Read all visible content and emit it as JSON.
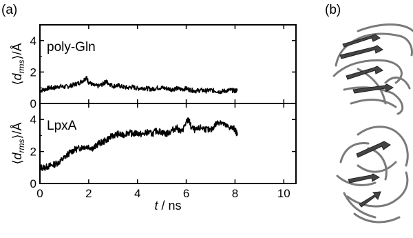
{
  "panel_labels": {
    "a": "(a)",
    "b": "(b)"
  },
  "chart_data": [
    {
      "type": "line",
      "panel": "(a) top",
      "inset_label": "poly-Gln",
      "ylabel": "⟨d_rms⟩/Å",
      "xlim": [
        0,
        10.5
      ],
      "ylim": [
        0,
        5
      ],
      "yticks": [
        0,
        2,
        4
      ],
      "xticks": [
        0,
        2,
        4,
        6,
        8,
        10
      ],
      "series": [
        {
          "x": [
            0,
            0.2,
            0.4,
            0.6,
            0.8,
            1.0,
            1.2,
            1.4,
            1.6,
            1.8,
            1.9,
            2.0,
            2.2,
            2.4,
            2.6,
            2.7,
            2.8,
            3.0,
            3.2,
            3.4,
            3.6,
            3.8,
            4.0,
            4.2,
            4.4,
            4.6,
            4.8,
            5.0,
            5.2,
            5.4,
            5.6,
            5.8,
            6.0,
            6.2,
            6.4,
            6.6,
            6.8,
            7.0,
            7.2,
            7.4,
            7.6,
            7.8,
            8.0,
            8.1
          ],
          "y": [
            0.8,
            0.9,
            1.0,
            1.0,
            1.1,
            1.05,
            1.1,
            1.2,
            1.3,
            1.5,
            1.65,
            1.35,
            1.15,
            1.1,
            1.25,
            1.4,
            1.3,
            1.1,
            1.15,
            1.05,
            1.0,
            1.05,
            0.95,
            1.0,
            0.95,
            0.9,
            1.0,
            1.0,
            0.95,
            0.9,
            0.95,
            0.9,
            0.95,
            0.85,
            0.8,
            0.85,
            0.8,
            0.85,
            0.8,
            0.75,
            0.8,
            0.85,
            0.8,
            0.85
          ]
        }
      ]
    },
    {
      "type": "line",
      "panel": "(a) bottom",
      "inset_label": "LpxA",
      "ylabel": "⟨d_rms⟩/Å",
      "xlabel": "t / ns",
      "xlim": [
        0,
        10.5
      ],
      "ylim": [
        0,
        5
      ],
      "yticks": [
        0,
        2,
        4
      ],
      "xticks": [
        0,
        2,
        4,
        6,
        8,
        10
      ],
      "series": [
        {
          "x": [
            0,
            0.2,
            0.4,
            0.6,
            0.8,
            1.0,
            1.2,
            1.4,
            1.6,
            1.8,
            2.0,
            2.2,
            2.4,
            2.6,
            2.8,
            3.0,
            3.2,
            3.4,
            3.6,
            3.8,
            4.0,
            4.2,
            4.4,
            4.6,
            4.8,
            5.0,
            5.2,
            5.4,
            5.6,
            5.8,
            6.0,
            6.1,
            6.2,
            6.4,
            6.6,
            6.8,
            7.0,
            7.2,
            7.4,
            7.6,
            7.8,
            8.0,
            8.1
          ],
          "y": [
            1.0,
            1.0,
            1.1,
            1.2,
            1.35,
            1.6,
            1.9,
            2.1,
            2.2,
            2.3,
            2.3,
            2.2,
            2.5,
            2.6,
            2.8,
            3.0,
            3.1,
            3.0,
            3.2,
            3.1,
            3.15,
            3.05,
            3.2,
            3.1,
            3.3,
            3.2,
            3.1,
            3.3,
            3.5,
            3.2,
            3.8,
            4.0,
            3.5,
            3.3,
            3.5,
            3.4,
            3.3,
            3.7,
            3.9,
            3.6,
            3.5,
            3.4,
            3.0
          ]
        }
      ]
    }
  ]
}
